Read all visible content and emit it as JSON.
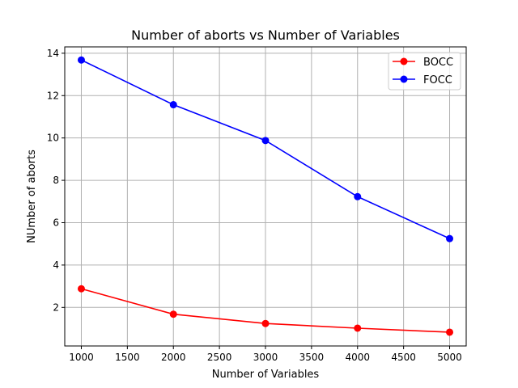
{
  "chart_data": {
    "type": "line",
    "title": "Number of aborts vs Number of Variables",
    "xlabel": "Number of Variables",
    "ylabel": "NUmber of aborts",
    "x": [
      1000,
      2000,
      3000,
      4000,
      5000
    ],
    "xlim": [
      820,
      5180
    ],
    "ylim": [
      0.18,
      14.3
    ],
    "xticks": [
      "1000",
      "1500",
      "2000",
      "2500",
      "3000",
      "3500",
      "4000",
      "4500",
      "5000"
    ],
    "yticks": [
      "2",
      "4",
      "6",
      "8",
      "10",
      "12",
      "14"
    ],
    "grid": true,
    "legend_position": "top-right",
    "series": [
      {
        "name": "BOCC",
        "color": "#ff0000",
        "values": [
          2.88,
          1.68,
          1.24,
          1.02,
          0.83
        ]
      },
      {
        "name": "FOCC",
        "color": "#0000ff",
        "values": [
          13.68,
          11.57,
          9.88,
          7.23,
          5.25
        ]
      }
    ]
  }
}
